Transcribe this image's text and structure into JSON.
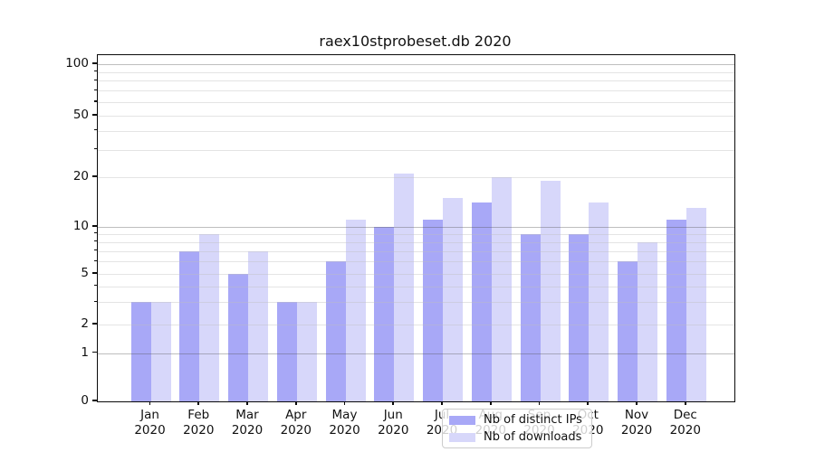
{
  "figure": {
    "title": "raex10stprobeset.db 2020"
  },
  "chart_data": {
    "type": "bar",
    "title": "raex10stprobeset.db 2020",
    "categories": [
      "Jan",
      "Feb",
      "Mar",
      "Apr",
      "May",
      "Jun",
      "Jul",
      "Aug",
      "Sep",
      "Oct",
      "Nov",
      "Dec"
    ],
    "year_label": "2020",
    "series": [
      {
        "name": "Nb of distinct IPs",
        "color": "#a8a8f7",
        "values": [
          3,
          7,
          5,
          3,
          6,
          10,
          11,
          14,
          9,
          9,
          6,
          11
        ]
      },
      {
        "name": "Nb of downloads",
        "color": "#d7d7fa",
        "values": [
          3,
          9,
          7,
          3,
          11,
          21,
          15,
          20,
          19,
          14,
          8,
          13
        ]
      }
    ],
    "xlabel": "",
    "ylabel": "",
    "yscale": "symlog",
    "ylim": [
      0,
      113
    ],
    "y_major_gridlines": [
      1,
      10,
      100
    ],
    "y_ticks": [
      0,
      1,
      2,
      5,
      10,
      20,
      50,
      100
    ],
    "y_minor_ticks": [
      3,
      4,
      6,
      7,
      8,
      9,
      30,
      40,
      60,
      70,
      80,
      90
    ],
    "grid": true,
    "legend_position": "lower center"
  }
}
